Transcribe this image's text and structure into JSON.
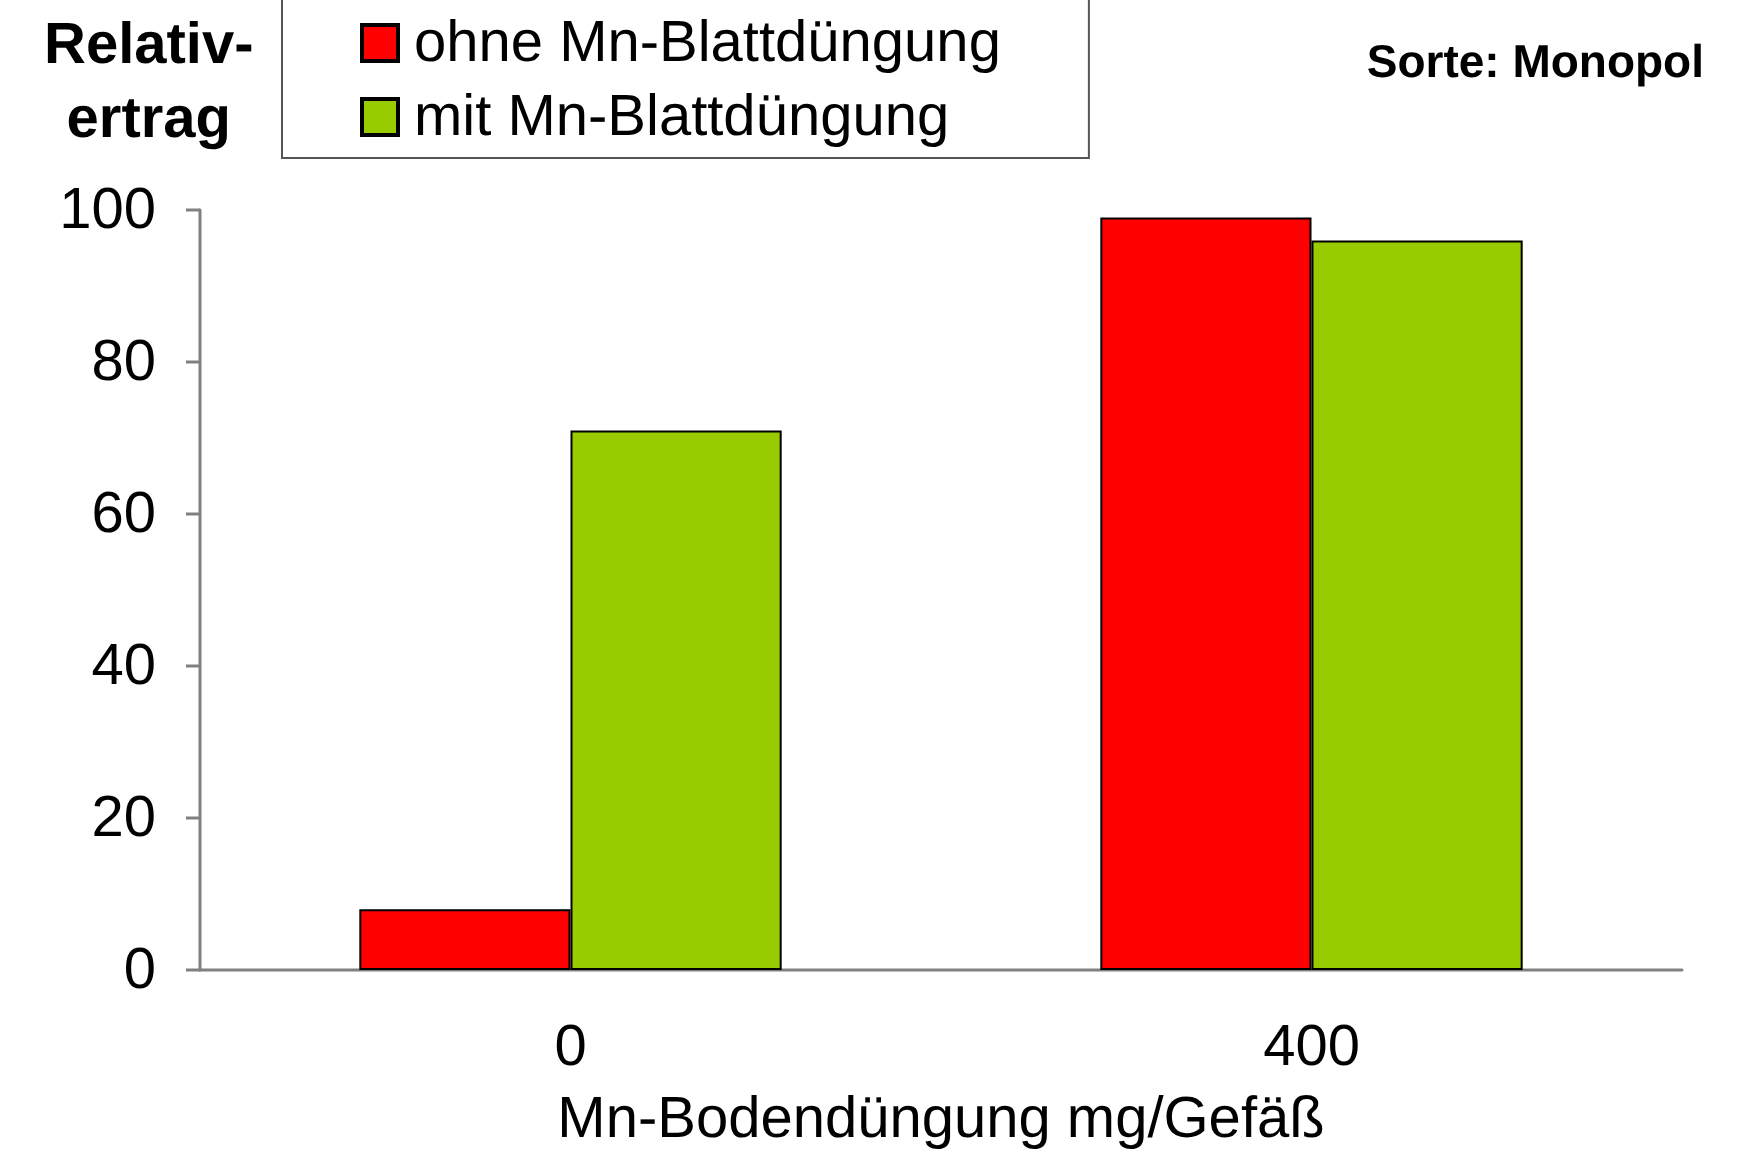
{
  "chart_data": {
    "type": "bar",
    "title": "Sorte: Monopol",
    "xlabel": "Mn-Bodendüngung mg/Gefäß",
    "ylabel": "Relativ-\nertrag",
    "categories": [
      "0",
      "400"
    ],
    "series": [
      {
        "name": "ohne Mn-Blattdüngung",
        "color": "#ff0000",
        "values": [
          8,
          99
        ]
      },
      {
        "name": "mit Mn-Blattdüngung",
        "color": "#99cc00",
        "values": [
          71,
          96
        ]
      }
    ],
    "ylim": [
      0,
      100
    ],
    "yticks": [
      0,
      20,
      40,
      60,
      80,
      100
    ],
    "grid": false,
    "legend": "top left"
  }
}
